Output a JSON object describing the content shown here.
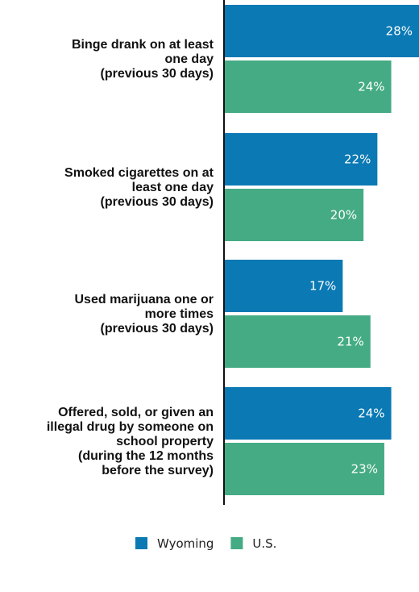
{
  "chart_data": {
    "type": "bar",
    "orientation": "horizontal",
    "title": "",
    "categories": [
      "Binge drank on at least\none day\n(previous 30 days)",
      "Smoked cigarettes on at\nleast one day\n(previous 30 days)",
      "Used marijuana one or\nmore times\n(previous 30 days)",
      "Offered, sold, or given an\nillegal drug by someone on\nschool property\n(during the 12 months\nbefore the survey)"
    ],
    "series": [
      {
        "name": "Wyoming",
        "color": "#0a79b4",
        "values": [
          28,
          22,
          17,
          24
        ]
      },
      {
        "name": "U.S.",
        "color": "#45ab84",
        "values": [
          24,
          20,
          21,
          23
        ]
      }
    ],
    "value_suffix": "%",
    "xlim": [
      0,
      29
    ],
    "grid": false,
    "legend": "bottom-center"
  }
}
